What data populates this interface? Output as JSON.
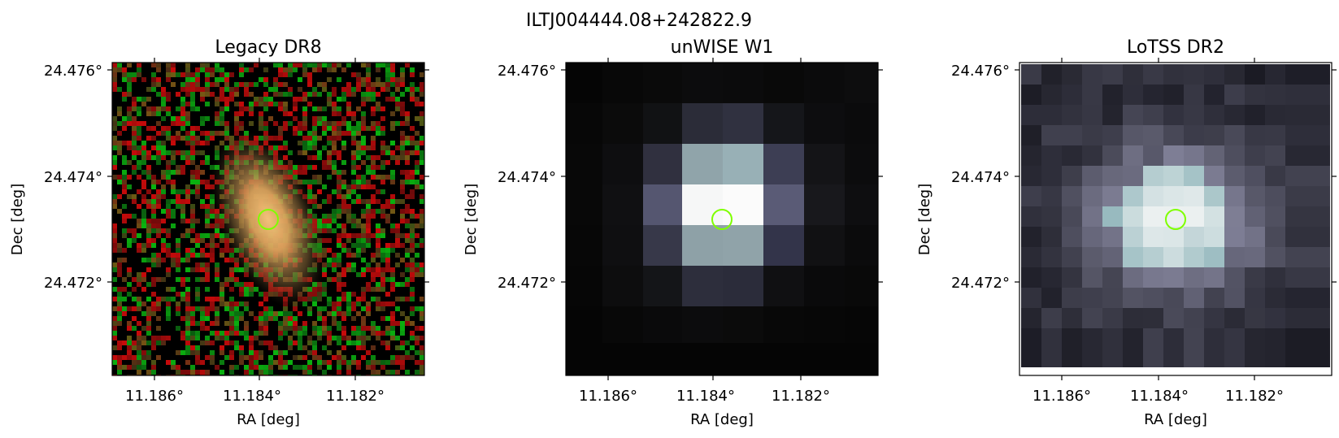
{
  "figure": {
    "title": "ILTJ004444.08+242822.9",
    "panels": [
      {
        "title": "Legacy DR8",
        "xlabel": "RA [deg]",
        "ylabel": "Dec [deg]",
        "xticks": [
          "11.186°",
          "11.184°",
          "11.182°"
        ],
        "yticks": [
          "24.476°",
          "24.474°",
          "24.472°"
        ]
      },
      {
        "title": "unWISE W1",
        "xlabel": "RA [deg]",
        "ylabel": "Dec [deg]",
        "xticks": [
          "11.186°",
          "11.184°",
          "11.182°"
        ],
        "yticks": [
          "24.476°",
          "24.474°",
          "24.472°"
        ]
      },
      {
        "title": "LoTSS DR2",
        "xlabel": "RA [deg]",
        "ylabel": "Dec [deg]",
        "xticks": [
          "11.186°",
          "11.184°",
          "11.182°"
        ],
        "yticks": [
          "24.476°",
          "24.474°",
          "24.472°"
        ]
      }
    ]
  },
  "colors": {
    "marker": "#7fff00",
    "legacy_glow": "#e8b06a"
  }
}
